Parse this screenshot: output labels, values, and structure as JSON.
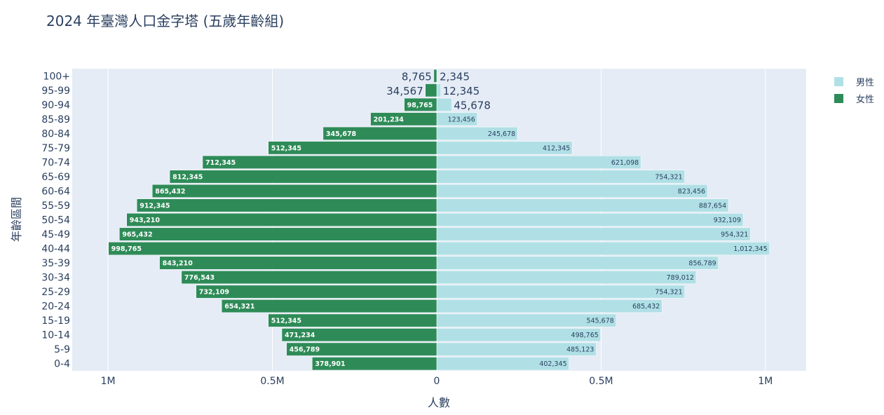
{
  "chart_data": {
    "type": "bar",
    "orientation": "horizontal",
    "title": "2024 年臺灣人口金字塔 (五歲年齡組)",
    "xlabel": "人數",
    "ylabel": "年齡區間",
    "xlim": [
      -1109000,
      1124000
    ],
    "grid": true,
    "legend_position": "top-right",
    "x_ticks": [
      {
        "value": -1000000,
        "label": "1M"
      },
      {
        "value": -500000,
        "label": "0.5M"
      },
      {
        "value": 0,
        "label": "0"
      },
      {
        "value": 500000,
        "label": "0.5M"
      },
      {
        "value": 1000000,
        "label": "1M"
      }
    ],
    "categories": [
      "0-4",
      "5-9",
      "10-14",
      "15-19",
      "20-24",
      "25-29",
      "30-34",
      "35-39",
      "40-44",
      "45-49",
      "50-54",
      "55-59",
      "60-64",
      "65-69",
      "70-74",
      "75-79",
      "80-84",
      "85-89",
      "90-94",
      "95-99",
      "100+"
    ],
    "series": [
      {
        "name": "男性",
        "color": "#b0e0e6",
        "text_color": "#2a3f5f",
        "side": "right",
        "values": [
          402345,
          485123,
          498765,
          545678,
          685432,
          754321,
          789012,
          856789,
          1012345,
          954321,
          932109,
          887654,
          823456,
          754321,
          621098,
          412345,
          245678,
          123456,
          45678,
          12345,
          2345
        ]
      },
      {
        "name": "女性",
        "color": "#2e8b57",
        "text_color": "#ffffff",
        "side": "left",
        "values": [
          378901,
          456789,
          471234,
          512345,
          654321,
          732109,
          776543,
          843210,
          998765,
          965432,
          943210,
          912345,
          865432,
          812345,
          712345,
          512345,
          345678,
          201234,
          98765,
          34567,
          8765
        ]
      }
    ]
  }
}
